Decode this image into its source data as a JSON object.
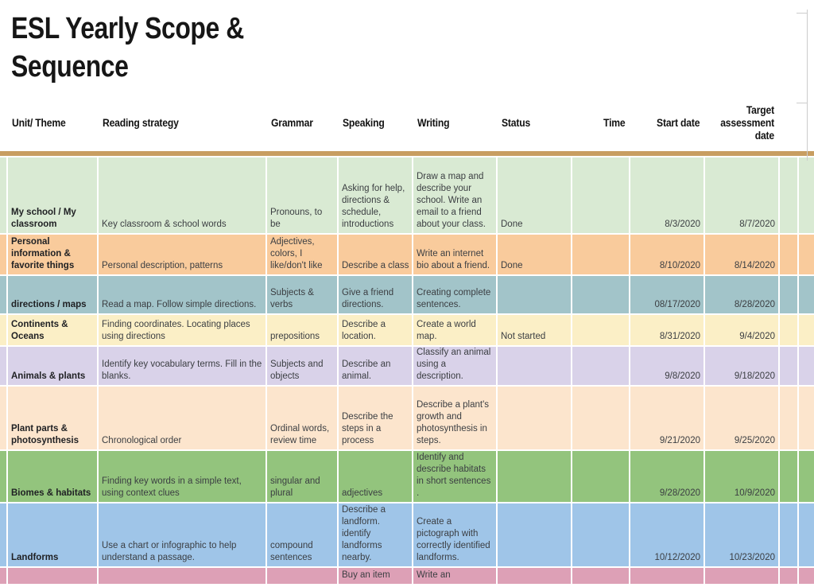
{
  "app": {
    "title": "ESL Yearly Scope & Sequence"
  },
  "table": {
    "columns": [
      {
        "id": "unit",
        "label": "Unit/ Theme"
      },
      {
        "id": "reading",
        "label": "Reading strategy"
      },
      {
        "id": "grammar",
        "label": "Grammar"
      },
      {
        "id": "speaking",
        "label": "Speaking"
      },
      {
        "id": "writing",
        "label": "Writing"
      },
      {
        "id": "status",
        "label": "Status"
      },
      {
        "id": "time",
        "label": "Time"
      },
      {
        "id": "start",
        "label": "Start date"
      },
      {
        "id": "target",
        "label": "Target assessment date"
      }
    ],
    "rows": [
      {
        "unit": "My school / My classroom",
        "reading": "Key classroom & school words",
        "grammar": "Pronouns, to be",
        "speaking": "Asking for help, directions & schedule, introductions",
        "writing": "Draw a map and describe your school. Write an email to a friend about your class.",
        "status": "Done",
        "time": "",
        "start": "8/3/2020",
        "target": "8/7/2020",
        "color": "#d9ead3"
      },
      {
        "unit": "Personal information & favorite things",
        "reading": "Personal description, patterns",
        "grammar": "Adjectives, colors, I like/don't like",
        "speaking": "Describe a class",
        "writing": "Write an internet bio about a friend.",
        "status": "Done",
        "time": "",
        "start": "8/10/2020",
        "target": "8/14/2020",
        "color": "#f9cb9c"
      },
      {
        "unit": "directions / maps",
        "reading": "Read a map. Follow simple directions.",
        "grammar": "Subjects & verbs",
        "speaking": "Give a friend directions.",
        "writing": "Creating complete sentences.",
        "status": "",
        "time": "",
        "start": "08/17/2020",
        "target": "8/28/2020",
        "color": "#a2c4c9"
      },
      {
        "unit": "Continents & Oceans",
        "reading": "Finding coordinates. Locating places using directions",
        "grammar": "prepositions",
        "speaking": "Describe a location.",
        "writing": "Create a world map.",
        "status": "Not started",
        "time": "",
        "start": "8/31/2020",
        "target": "9/4/2020",
        "color": "#fbefc6"
      },
      {
        "unit": "Animals & plants",
        "reading": "Identify key vocabulary terms. Fill in the blanks.",
        "grammar": "Subjects and objects",
        "speaking": "Describe an animal.",
        "writing": "Classify an animal using a description.",
        "status": "",
        "time": "",
        "start": "9/8/2020",
        "target": "9/18/2020",
        "color": "#d9d2e9"
      },
      {
        "unit": "Plant parts & photosynthesis",
        "reading": "Chronological order",
        "grammar": "Ordinal words, review time",
        "speaking": "Describe the steps in a process",
        "writing": "Describe a plant's growth and photosynthesis in steps.",
        "status": "",
        "time": "",
        "start": "9/21/2020",
        "target": "9/25/2020",
        "color": "#fce5cd"
      },
      {
        "unit": "Biomes & habitats",
        "reading": "Finding key words in a simple text, using context clues",
        "grammar": "singular and plural",
        "speaking": "adjectives",
        "writing": "Identify and describe habitats in short sentences .",
        "status": "",
        "time": "",
        "start": "9/28/2020",
        "target": "10/9/2020",
        "color": "#93c47d"
      },
      {
        "unit": "Landforms",
        "reading": "Use a chart or infographic to help understand a passage.",
        "grammar": "compound sentences",
        "speaking": "Describe a landform. identify landforms nearby.",
        "writing": "Create a pictograph with correctly identified landforms.",
        "status": "",
        "time": "",
        "start": "10/12/2020",
        "target": "10/23/2020",
        "color": "#9fc5e8"
      },
      {
        "unit": "",
        "reading": "",
        "grammar": "",
        "speaking": "Buy an item",
        "writing": "Write an",
        "status": "",
        "time": "",
        "start": "",
        "target": "",
        "color": "#dda0b6"
      }
    ]
  },
  "colors": {
    "page_bg": "#ffffff",
    "divider_bar": "#c89e61",
    "gridline": "#ffffff",
    "body_text": "#3b3e42",
    "header_text": "#121212",
    "edge_line": "#cccccc"
  }
}
